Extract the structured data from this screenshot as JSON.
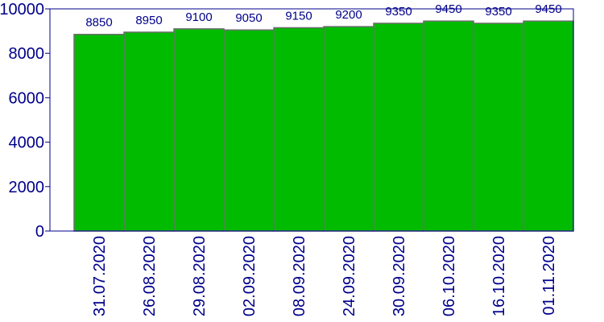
{
  "chart_data": {
    "type": "bar",
    "categories": [
      "31.07.2020",
      "26.08.2020",
      "29.08.2020",
      "02.09.2020",
      "08.09.2020",
      "24.09.2020",
      "30.09.2020",
      "06.10.2020",
      "16.10.2020",
      "01.11.2020"
    ],
    "values": [
      8850,
      8950,
      9100,
      9050,
      9150,
      9200,
      9350,
      9450,
      9350,
      9450
    ],
    "title": "",
    "xlabel": "",
    "ylabel": "",
    "ylim": [
      0,
      10000
    ],
    "yticks": [
      0,
      2000,
      4000,
      6000,
      8000,
      10000
    ],
    "grid": false,
    "legend": "none",
    "colors": {
      "bar_fill": "#00bb00",
      "bar_stroke": "#6e6e6e",
      "axis": "#00008b",
      "text": "#00008b"
    }
  }
}
